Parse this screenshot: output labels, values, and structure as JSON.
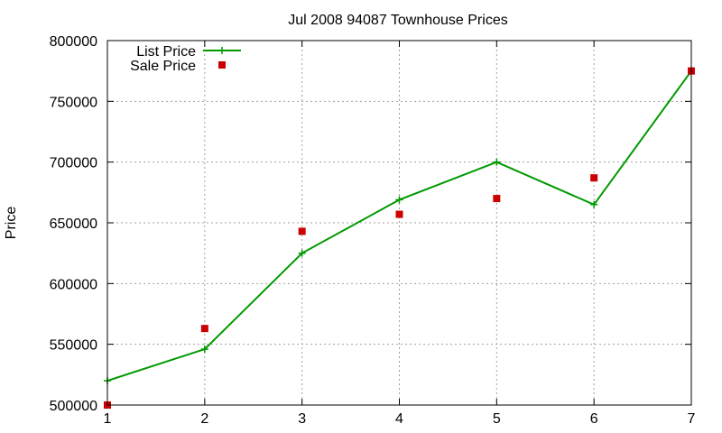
{
  "chart_data": {
    "type": "line",
    "title": "Jul 2008 94087 Townhouse Prices",
    "xlabel": "",
    "ylabel": "Price",
    "xlim": [
      1,
      7
    ],
    "ylim": [
      500000,
      800000
    ],
    "x_ticks": [
      "1",
      "2",
      "3",
      "4",
      "5",
      "6",
      "7"
    ],
    "y_ticks": [
      "500000",
      "550000",
      "600000",
      "650000",
      "700000",
      "750000",
      "800000"
    ],
    "grid": true,
    "legend_position": "top-left",
    "x": [
      1,
      2,
      3,
      4,
      5,
      6,
      7
    ],
    "series": [
      {
        "name": "List Price",
        "style": "line-with-plus-markers",
        "color": "#009900",
        "values": [
          520000,
          546000,
          625000,
          669000,
          700000,
          665000,
          775000
        ]
      },
      {
        "name": "Sale Price",
        "style": "square-markers",
        "color": "#cc0000",
        "values": [
          500000,
          563000,
          643000,
          657000,
          670000,
          687000,
          775000
        ]
      }
    ]
  }
}
